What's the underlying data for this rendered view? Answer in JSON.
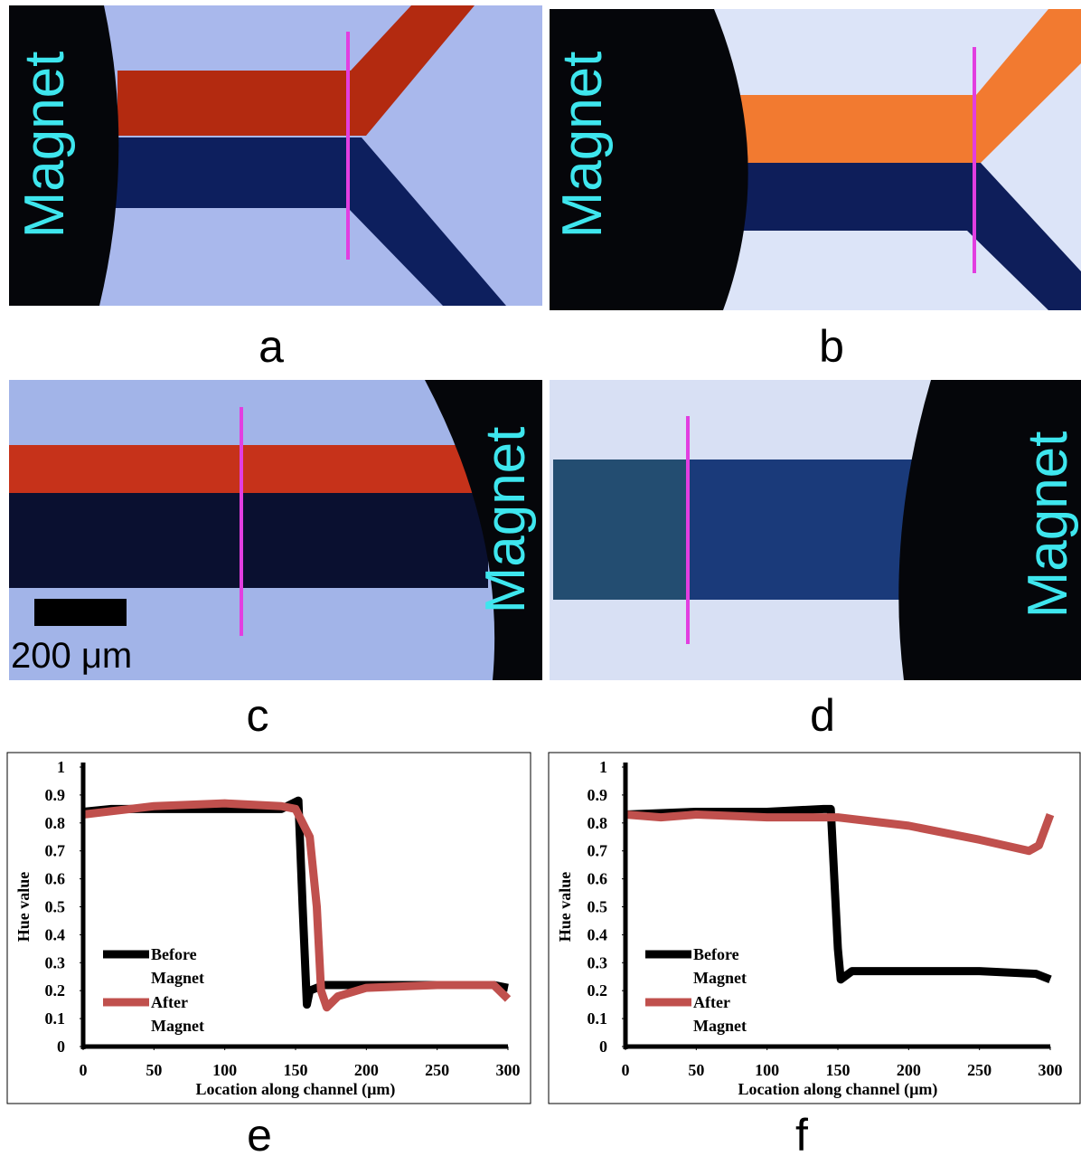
{
  "panels": [
    {
      "label": "a",
      "side_text": "Magnet"
    },
    {
      "label": "b",
      "side_text": "Magnet"
    },
    {
      "label": "c",
      "side_text": "Magnet",
      "scale_bar": "200 μm"
    },
    {
      "label": "d",
      "side_text": "Magnet"
    }
  ],
  "chart_data": [
    {
      "type": "line",
      "panel_label": "e",
      "xlabel": "Location along channel (µm)",
      "ylabel": "Hue value",
      "xlim": [
        0,
        300
      ],
      "ylim": [
        0,
        1
      ],
      "xticks": [
        0,
        50,
        100,
        150,
        200,
        250,
        300
      ],
      "yticks": [
        0,
        0.1,
        0.2,
        0.3,
        0.4,
        0.5,
        0.6,
        0.7,
        0.8,
        0.9,
        1
      ],
      "series": [
        {
          "name": "Before Magnet",
          "color": "#000000",
          "x": [
            0,
            20,
            50,
            100,
            140,
            148,
            152,
            155,
            158,
            160,
            170,
            200,
            250,
            290,
            300
          ],
          "values": [
            0.84,
            0.85,
            0.85,
            0.85,
            0.85,
            0.87,
            0.88,
            0.5,
            0.15,
            0.2,
            0.22,
            0.22,
            0.22,
            0.22,
            0.21
          ]
        },
        {
          "name": "After Magnet",
          "color": "#c0504d",
          "x": [
            0,
            50,
            100,
            140,
            150,
            160,
            165,
            168,
            172,
            180,
            200,
            250,
            290,
            300
          ],
          "values": [
            0.83,
            0.86,
            0.87,
            0.86,
            0.85,
            0.75,
            0.5,
            0.2,
            0.14,
            0.18,
            0.21,
            0.22,
            0.22,
            0.17
          ]
        }
      ]
    },
    {
      "type": "line",
      "panel_label": "f",
      "xlabel": "Location along channel (µm)",
      "ylabel": "Hue value",
      "xlim": [
        0,
        300
      ],
      "ylim": [
        0,
        1
      ],
      "xticks": [
        0,
        50,
        100,
        150,
        200,
        250,
        300
      ],
      "yticks": [
        0,
        0.1,
        0.2,
        0.3,
        0.4,
        0.5,
        0.6,
        0.7,
        0.8,
        0.9,
        1
      ],
      "series": [
        {
          "name": "Before Magnet",
          "color": "#000000",
          "x": [
            0,
            50,
            100,
            140,
            145,
            150,
            152,
            160,
            200,
            250,
            290,
            300
          ],
          "values": [
            0.83,
            0.84,
            0.84,
            0.85,
            0.85,
            0.35,
            0.24,
            0.27,
            0.27,
            0.27,
            0.26,
            0.24
          ]
        },
        {
          "name": "After Magnet",
          "color": "#c0504d",
          "x": [
            0,
            25,
            50,
            100,
            150,
            200,
            250,
            285,
            292,
            300
          ],
          "values": [
            0.83,
            0.82,
            0.83,
            0.82,
            0.82,
            0.79,
            0.74,
            0.7,
            0.72,
            0.83
          ]
        }
      ]
    }
  ]
}
